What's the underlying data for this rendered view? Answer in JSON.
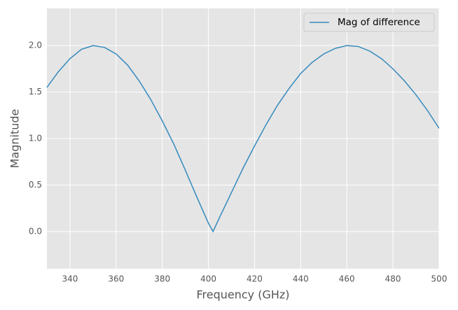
{
  "chart_data": {
    "type": "line",
    "xlabel": "Frequency (GHz)",
    "ylabel": "Magnitude",
    "x": [
      330,
      335,
      340,
      345,
      350,
      355,
      360,
      365,
      370,
      375,
      380,
      385,
      390,
      395,
      400,
      402,
      405,
      410,
      415,
      420,
      425,
      430,
      435,
      440,
      445,
      450,
      455,
      460,
      465,
      470,
      475,
      480,
      485,
      490,
      495,
      500
    ],
    "series": [
      {
        "name": "Mag of difference",
        "color": "#348abd",
        "values": [
          1.55,
          1.72,
          1.86,
          1.96,
          2.0,
          1.98,
          1.91,
          1.79,
          1.62,
          1.42,
          1.19,
          0.94,
          0.66,
          0.37,
          0.09,
          0,
          0.16,
          0.42,
          0.68,
          0.92,
          1.15,
          1.36,
          1.54,
          1.7,
          1.82,
          1.91,
          1.97,
          2.0,
          1.99,
          1.94,
          1.86,
          1.75,
          1.62,
          1.47,
          1.3,
          1.11
        ]
      }
    ],
    "xlim": [
      330,
      500
    ],
    "ylim": [
      -0.4,
      2.4
    ],
    "xticks": [
      340,
      360,
      380,
      400,
      420,
      440,
      460,
      480,
      500
    ],
    "yticks": [
      {
        "value": 0,
        "label": "0.0"
      },
      {
        "value": 0.5,
        "label": "0.5"
      },
      {
        "value": 1,
        "label": "1.0"
      },
      {
        "value": 1.5,
        "label": "1.5"
      },
      {
        "value": 2,
        "label": "2.0"
      }
    ],
    "grid": true,
    "legend": "upper right"
  }
}
